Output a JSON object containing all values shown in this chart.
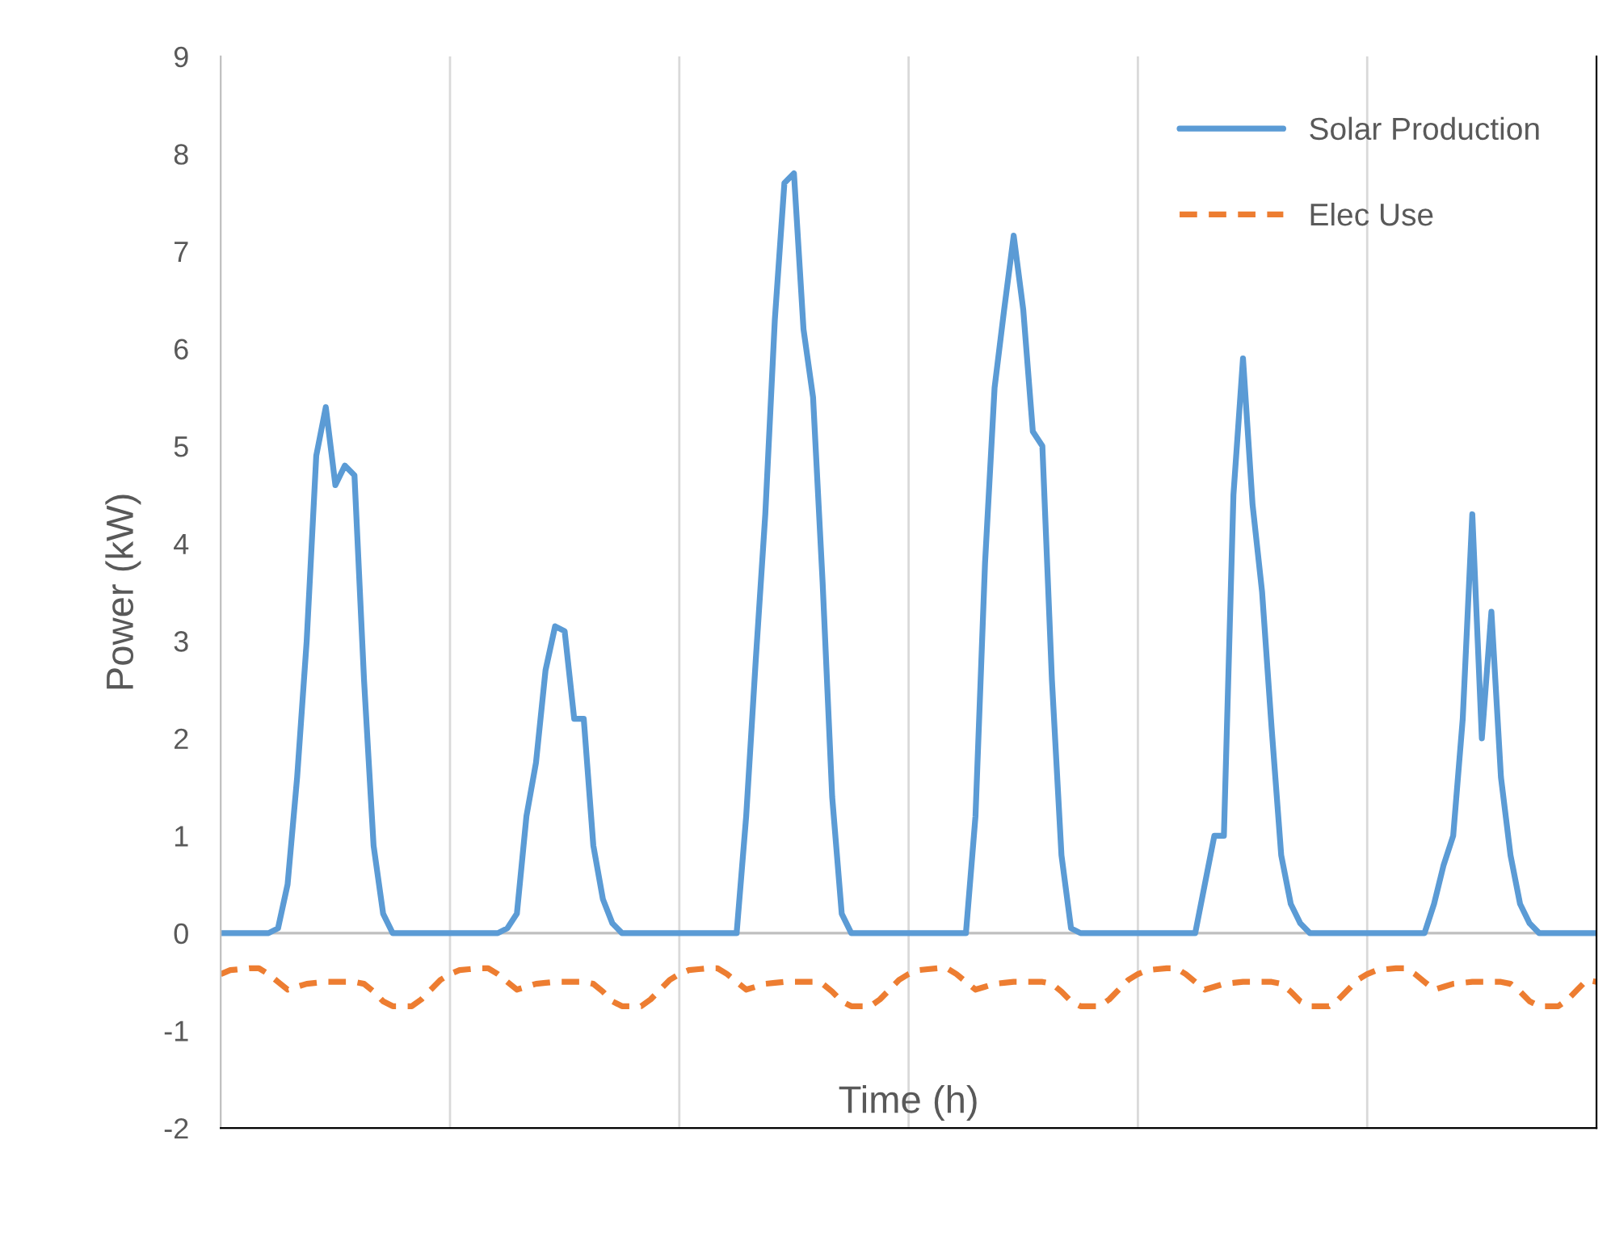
{
  "chart_data": {
    "type": "line",
    "xlabel": "Time (h)",
    "ylabel": "Power (kW)",
    "categories": [
      null,
      null,
      null,
      null,
      null,
      null,
      null,
      null,
      null,
      null,
      null,
      null,
      null,
      null,
      null,
      null,
      null,
      null,
      null,
      null,
      null,
      null,
      null,
      null,
      null,
      null,
      null,
      null,
      null,
      null,
      null,
      null,
      null,
      null,
      null,
      null,
      null,
      null,
      null,
      null,
      null,
      null,
      null,
      null,
      null,
      null,
      null,
      null,
      null,
      null,
      null,
      null,
      null,
      null,
      null,
      null,
      null,
      null,
      null,
      null,
      null,
      null,
      null,
      null,
      null,
      null,
      null,
      null,
      null,
      null,
      null,
      null,
      null,
      null,
      null,
      null,
      null,
      null,
      null,
      null,
      null,
      null,
      null,
      null,
      null,
      null,
      null,
      null,
      null,
      null,
      null,
      null,
      null,
      null,
      null,
      null,
      null,
      null,
      null,
      null,
      null,
      null,
      null,
      null,
      null,
      null,
      null,
      null,
      null,
      null,
      null,
      null,
      null,
      null,
      null,
      null,
      null,
      null,
      null,
      null,
      null,
      null,
      null,
      null,
      null,
      null,
      null,
      null,
      null,
      null,
      null,
      null,
      null,
      null,
      null,
      null,
      null,
      null,
      null,
      null,
      null,
      null,
      null,
      null,
      null
    ],
    "ylim": [
      -2,
      9
    ],
    "yticks": [
      -2,
      -1,
      0,
      1,
      2,
      3,
      4,
      5,
      6,
      7,
      8,
      9
    ],
    "grid": "x",
    "legend": "top right",
    "ref_lines": [
      {
        "axis": "y",
        "value": 0,
        "color": "#bfbfbf"
      }
    ],
    "series": [
      {
        "name": "Solar Production",
        "color": "#5b9bd5",
        "line_style": "solid",
        "values": [
          0,
          0,
          0,
          0,
          0,
          0,
          0.05,
          0.5,
          1.6,
          3.0,
          4.9,
          5.4,
          4.6,
          4.8,
          4.7,
          2.6,
          0.9,
          0.2,
          0,
          0,
          0,
          0,
          0,
          0,
          0,
          0,
          0,
          0,
          0,
          0,
          0.05,
          0.2,
          1.2,
          1.75,
          2.7,
          3.15,
          3.1,
          2.2,
          2.2,
          0.9,
          0.35,
          0.1,
          0,
          0,
          0,
          0,
          0,
          0,
          0,
          0,
          0,
          0,
          0,
          0,
          0,
          1.2,
          2.8,
          4.3,
          6.3,
          7.7,
          7.8,
          6.2,
          5.5,
          3.6,
          1.4,
          0.2,
          0,
          0,
          0,
          0,
          0,
          0,
          0,
          0,
          0,
          0,
          0,
          0,
          0,
          1.2,
          3.8,
          5.6,
          6.4,
          7.16,
          6.4,
          5.15,
          5.0,
          2.6,
          0.8,
          0.05,
          0,
          0,
          0,
          0,
          0,
          0,
          0,
          0,
          0,
          0,
          0,
          0,
          0,
          0.5,
          1.0,
          1.0,
          4.5,
          5.9,
          4.4,
          3.5,
          2.1,
          0.8,
          0.3,
          0.1,
          0,
          0,
          0,
          0,
          0,
          0,
          0,
          0,
          0,
          0,
          0,
          0,
          0,
          0.3,
          0.7,
          1.0,
          2.2,
          4.3,
          2.0,
          3.3,
          1.6,
          0.8,
          0.3,
          0.1,
          0,
          0,
          0,
          0,
          0,
          0,
          0
        ]
      },
      {
        "name": "Elec Use",
        "color": "#ed7d31",
        "line_style": "dashed",
        "values": [
          -0.42,
          -0.38,
          -0.37,
          -0.36,
          -0.36,
          -0.42,
          -0.5,
          -0.58,
          -0.55,
          -0.52,
          -0.51,
          -0.5,
          -0.5,
          -0.5,
          -0.5,
          -0.52,
          -0.6,
          -0.7,
          -0.75,
          -0.75,
          -0.75,
          -0.68,
          -0.58,
          -0.48,
          -0.42,
          -0.38,
          -0.37,
          -0.36,
          -0.36,
          -0.42,
          -0.5,
          -0.58,
          -0.55,
          -0.52,
          -0.51,
          -0.5,
          -0.5,
          -0.5,
          -0.5,
          -0.52,
          -0.6,
          -0.7,
          -0.75,
          -0.75,
          -0.75,
          -0.68,
          -0.58,
          -0.48,
          -0.42,
          -0.38,
          -0.37,
          -0.36,
          -0.36,
          -0.42,
          -0.5,
          -0.58,
          -0.55,
          -0.52,
          -0.51,
          -0.5,
          -0.5,
          -0.5,
          -0.5,
          -0.52,
          -0.6,
          -0.7,
          -0.75,
          -0.75,
          -0.75,
          -0.68,
          -0.58,
          -0.48,
          -0.42,
          -0.38,
          -0.37,
          -0.36,
          -0.36,
          -0.42,
          -0.5,
          -0.58,
          -0.55,
          -0.52,
          -0.51,
          -0.5,
          -0.5,
          -0.5,
          -0.5,
          -0.52,
          -0.6,
          -0.7,
          -0.75,
          -0.75,
          -0.75,
          -0.68,
          -0.58,
          -0.48,
          -0.42,
          -0.38,
          -0.37,
          -0.36,
          -0.36,
          -0.42,
          -0.5,
          -0.58,
          -0.55,
          -0.52,
          -0.51,
          -0.5,
          -0.5,
          -0.5,
          -0.5,
          -0.52,
          -0.6,
          -0.7,
          -0.75,
          -0.75,
          -0.75,
          -0.68,
          -0.58,
          -0.48,
          -0.42,
          -0.38,
          -0.37,
          -0.36,
          -0.36,
          -0.42,
          -0.5,
          -0.58,
          -0.55,
          -0.52,
          -0.51,
          -0.5,
          -0.5,
          -0.5,
          -0.5,
          -0.52,
          -0.6,
          -0.7,
          -0.75,
          -0.75,
          -0.75,
          -0.68,
          -0.58,
          -0.48,
          -0.5
        ]
      }
    ]
  }
}
